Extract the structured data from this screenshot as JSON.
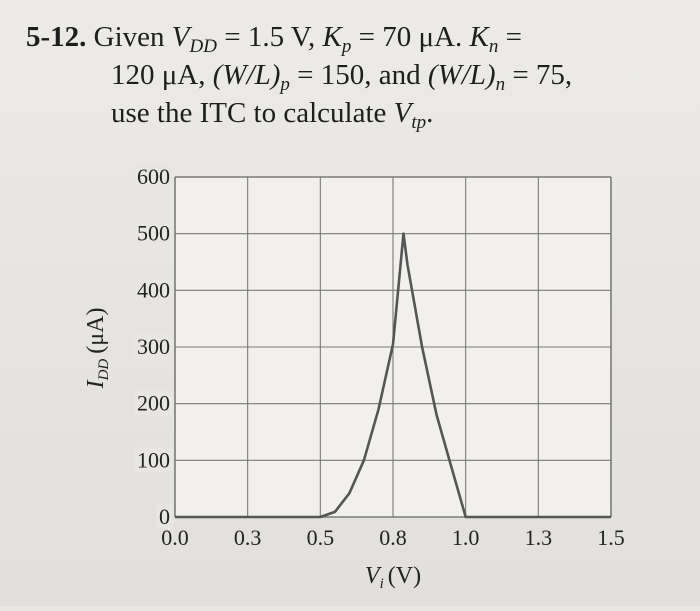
{
  "problem": {
    "number": "5-12.",
    "line1": {
      "given": "Given",
      "vdd_var": "V",
      "vdd_sub": "DD",
      "vdd_val": "= 1.5 V,",
      "kp_var": "K",
      "kp_sub": "p",
      "kp_val": "= 70 μA.",
      "kn_var": "K",
      "kn_sub": "n",
      "kn_eq": "="
    },
    "line2": {
      "kn_val": "120 μA,",
      "wlp_var": "(W/L)",
      "wlp_sub": "p",
      "wlp_val": "= 150, and",
      "wln_var": "(W/L)",
      "wln_sub": "n",
      "wln_val": "= 75,"
    },
    "line3": {
      "text": "use the ITC to calculate",
      "vtp_var": "V",
      "vtp_sub": "tp",
      "end": "."
    }
  },
  "chart_data": {
    "type": "line",
    "title": "",
    "xlabel_var": "V",
    "xlabel_sub": "i",
    "xlabel_unit": "(V)",
    "ylabel_var": "I",
    "ylabel_sub": "DD",
    "ylabel_unit": "(μA)",
    "x_ticks": [
      "0.0",
      "0.3",
      "0.5",
      "0.8",
      "1.0",
      "1.3",
      "1.5"
    ],
    "y_ticks": [
      "0",
      "100",
      "200",
      "300",
      "400",
      "500",
      "600"
    ],
    "xlim": [
      0,
      1.5
    ],
    "ylim": [
      0,
      600
    ],
    "x_grid_step": 0.25,
    "y_grid_step": 100,
    "grid": true,
    "series": [
      {
        "x": [
          0,
          0.5,
          0.55,
          0.6,
          0.65,
          0.7,
          0.75,
          0.786,
          0.8,
          0.85,
          0.9,
          0.95,
          1.0,
          1.5
        ],
        "y": [
          0,
          0,
          9,
          42,
          100,
          190,
          305,
          500,
          445,
          300,
          180,
          90,
          0,
          0
        ]
      }
    ]
  }
}
